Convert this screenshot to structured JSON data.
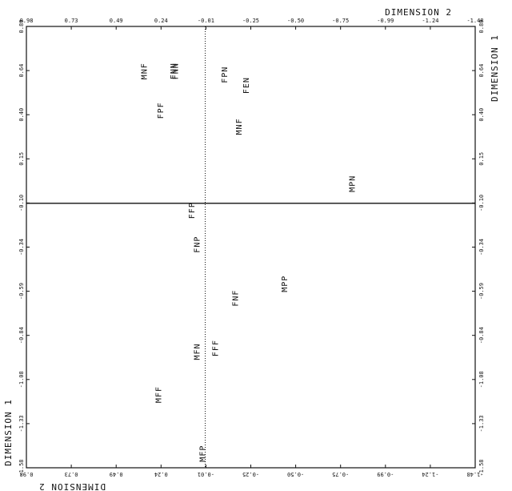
{
  "chart_data": {
    "type": "scatter",
    "title": "",
    "axes": {
      "top": {
        "title": "DIMENSION 2",
        "ticks": [
          "0.98",
          "0.73",
          "0.49",
          "0.24",
          "-0.01",
          "-0.25",
          "-0.50",
          "-0.75",
          "-0.99",
          "-1.24",
          "-1.48"
        ],
        "range": [
          0.98,
          -1.48
        ]
      },
      "bottom": {
        "title": "DIMENSION 2",
        "ticks": [
          "0.98",
          "0.73",
          "0.49",
          "0.24",
          "-0.01",
          "-0.25",
          "-0.50",
          "-0.75",
          "-0.99",
          "-1.24",
          "-1.48"
        ],
        "range": [
          0.98,
          -1.48
        ]
      },
      "left": {
        "title": "DIMENSION 1",
        "ticks": [
          "0.89",
          "0.64",
          "0.40",
          "0.15",
          "-0.10",
          "-0.34",
          "-0.59",
          "-0.84",
          "-1.08",
          "-1.33",
          "-1.58"
        ],
        "range": [
          0.89,
          -1.58
        ]
      },
      "right": {
        "title": "DIMENSION 1",
        "ticks": [
          "0.89",
          "0.64",
          "0.40",
          "0.15",
          "-0.10",
          "-0.34",
          "-0.59",
          "-0.84",
          "-1.08",
          "-1.33",
          "-1.58"
        ],
        "range": [
          0.89,
          -1.58
        ]
      }
    },
    "reference_lines": {
      "x": 0.0,
      "y": -0.1
    },
    "points": [
      {
        "label": "MNF",
        "x": 0.32,
        "y": 0.64
      },
      {
        "label": "FNN",
        "x": 0.16,
        "y": 0.64
      },
      {
        "label": "FNN",
        "x": 0.15,
        "y": 0.64
      },
      {
        "label": "FPN",
        "x": -0.12,
        "y": 0.62
      },
      {
        "label": "FEN",
        "x": -0.24,
        "y": 0.56
      },
      {
        "label": "FPF",
        "x": 0.23,
        "y": 0.42
      },
      {
        "label": "MNF",
        "x": -0.2,
        "y": 0.33
      },
      {
        "label": "MPN",
        "x": -0.82,
        "y": 0.01
      },
      {
        "label": "FFP",
        "x": 0.06,
        "y": -0.14
      },
      {
        "label": "FNP",
        "x": 0.03,
        "y": -0.33
      },
      {
        "label": "MPP",
        "x": -0.45,
        "y": -0.55
      },
      {
        "label": "FNF",
        "x": -0.18,
        "y": -0.63
      },
      {
        "label": "MFN",
        "x": 0.03,
        "y": -0.93
      },
      {
        "label": "FFF",
        "x": -0.07,
        "y": -0.91
      },
      {
        "label": "MFF",
        "x": 0.24,
        "y": -1.17
      },
      {
        "label": "MFP",
        "x": 0.0,
        "y": -1.5
      }
    ]
  }
}
